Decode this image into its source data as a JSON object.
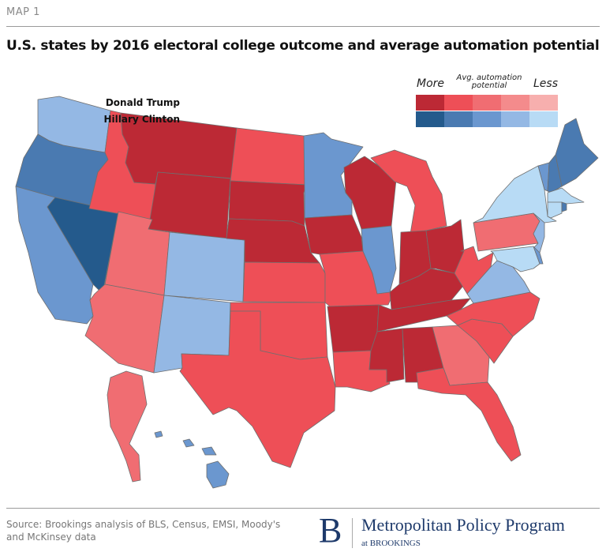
{
  "header": {
    "kicker": "MAP 1",
    "title": "U.S. states by 2016 electoral college outcome and average automation potential"
  },
  "legend": {
    "more": "More",
    "less": "Less",
    "axis_label_line1": "Avg. automation",
    "axis_label_line2": "potential",
    "rows": [
      {
        "label": "Donald Trump",
        "colors": [
          "#bc2935",
          "#ee4f57",
          "#f06d72",
          "#f48b8c",
          "#f7afae"
        ]
      },
      {
        "label": "Hillary Clinton",
        "colors": [
          "#245a8c",
          "#4a7ab1",
          "#6b97cf",
          "#94b8e4",
          "#b8dbf5"
        ]
      }
    ]
  },
  "map": {
    "states": {
      "WA": {
        "winner": "Hillary Clinton",
        "level": 4
      },
      "OR": {
        "winner": "Hillary Clinton",
        "level": 2
      },
      "CA": {
        "winner": "Hillary Clinton",
        "level": 3
      },
      "NV": {
        "winner": "Hillary Clinton",
        "level": 1
      },
      "ID": {
        "winner": "Donald Trump",
        "level": 2
      },
      "MT": {
        "winner": "Donald Trump",
        "level": 1
      },
      "WY": {
        "winner": "Donald Trump",
        "level": 1
      },
      "UT": {
        "winner": "Donald Trump",
        "level": 3
      },
      "AZ": {
        "winner": "Donald Trump",
        "level": 3
      },
      "CO": {
        "winner": "Hillary Clinton",
        "level": 4
      },
      "NM": {
        "winner": "Hillary Clinton",
        "level": 4
      },
      "ND": {
        "winner": "Donald Trump",
        "level": 2
      },
      "SD": {
        "winner": "Donald Trump",
        "level": 1
      },
      "NE": {
        "winner": "Donald Trump",
        "level": 1
      },
      "KS": {
        "winner": "Donald Trump",
        "level": 2
      },
      "OK": {
        "winner": "Donald Trump",
        "level": 2
      },
      "TX": {
        "winner": "Donald Trump",
        "level": 2
      },
      "MN": {
        "winner": "Hillary Clinton",
        "level": 3
      },
      "IA": {
        "winner": "Donald Trump",
        "level": 1
      },
      "MO": {
        "winner": "Donald Trump",
        "level": 2
      },
      "AR": {
        "winner": "Donald Trump",
        "level": 1
      },
      "LA": {
        "winner": "Donald Trump",
        "level": 2
      },
      "WI": {
        "winner": "Donald Trump",
        "level": 1
      },
      "IL": {
        "winner": "Hillary Clinton",
        "level": 3
      },
      "MI": {
        "winner": "Donald Trump",
        "level": 2
      },
      "IN": {
        "winner": "Donald Trump",
        "level": 1
      },
      "OH": {
        "winner": "Donald Trump",
        "level": 1
      },
      "KY": {
        "winner": "Donald Trump",
        "level": 1
      },
      "TN": {
        "winner": "Donald Trump",
        "level": 1
      },
      "MS": {
        "winner": "Donald Trump",
        "level": 1
      },
      "AL": {
        "winner": "Donald Trump",
        "level": 1
      },
      "GA": {
        "winner": "Donald Trump",
        "level": 3
      },
      "FL": {
        "winner": "Donald Trump",
        "level": 2
      },
      "SC": {
        "winner": "Donald Trump",
        "level": 2
      },
      "NC": {
        "winner": "Donald Trump",
        "level": 2
      },
      "WV": {
        "winner": "Donald Trump",
        "level": 2
      },
      "VA": {
        "winner": "Hillary Clinton",
        "level": 4
      },
      "PA": {
        "winner": "Donald Trump",
        "level": 3
      },
      "NY": {
        "winner": "Hillary Clinton",
        "level": 5
      },
      "NJ": {
        "winner": "Hillary Clinton",
        "level": 4
      },
      "MD": {
        "winner": "Hillary Clinton",
        "level": 5
      },
      "DE": {
        "winner": "Hillary Clinton",
        "level": 3
      },
      "VT": {
        "winner": "Hillary Clinton",
        "level": 3
      },
      "NH": {
        "winner": "Hillary Clinton",
        "level": 2
      },
      "ME": {
        "winner": "Hillary Clinton",
        "level": 2
      },
      "MA": {
        "winner": "Hillary Clinton",
        "level": 5
      },
      "CT": {
        "winner": "Hillary Clinton",
        "level": 5
      },
      "RI": {
        "winner": "Hillary Clinton",
        "level": 2
      },
      "AK": {
        "winner": "Donald Trump",
        "level": 3
      },
      "HI": {
        "winner": "Hillary Clinton",
        "level": 3
      }
    }
  },
  "footer": {
    "source_line1": "Source: Brookings analysis of BLS, Census, EMSI, Moody's",
    "source_line2": "and McKinsey data",
    "logo_letter": "B",
    "program_name": "Metropolitan Policy Program",
    "program_sub": "at BROOKINGS"
  }
}
